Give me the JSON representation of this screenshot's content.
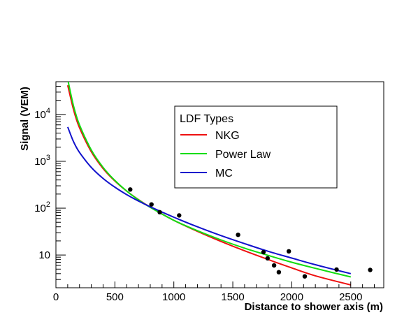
{
  "chart_data": {
    "type": "line",
    "title": "",
    "xlabel": "Distance to shower axis (m)",
    "ylabel": "Signal (VEM)",
    "xlim": [
      0,
      2780
    ],
    "ylim": [
      2,
      50000
    ],
    "y_scale": "log",
    "grid": false,
    "x_ticks": [
      {
        "value": 0,
        "label": "0"
      },
      {
        "value": 500,
        "label": "500"
      },
      {
        "value": 1000,
        "label": "1000"
      },
      {
        "value": 1500,
        "label": "1500"
      },
      {
        "value": 2000,
        "label": "2000"
      },
      {
        "value": 2500,
        "label": "2500"
      }
    ],
    "y_ticks": [
      {
        "value": 10,
        "label": "10",
        "base": "10",
        "exp": ""
      },
      {
        "value": 100,
        "label": "10^2",
        "base": "10",
        "exp": "2"
      },
      {
        "value": 1000,
        "label": "10^3",
        "base": "10",
        "exp": "3"
      },
      {
        "value": 10000,
        "label": "10^4",
        "base": "10",
        "exp": "4"
      }
    ],
    "legend": {
      "title": "LDF Types",
      "position": "top-right",
      "entries": [
        {
          "name": "NKG",
          "color": "#ee1111"
        },
        {
          "name": "Power Law",
          "color": "#11dd11"
        },
        {
          "name": "MC",
          "color": "#1111cc"
        }
      ]
    },
    "series": [
      {
        "name": "NKG",
        "color": "#ee1111",
        "x": [
          100,
          150,
          200,
          300,
          400,
          500,
          600,
          700,
          800,
          1000,
          1200,
          1400,
          1600,
          1800,
          2000,
          2200,
          2500
        ],
        "y": [
          42000,
          12500,
          5200,
          1600,
          700,
          380,
          232,
          152,
          105,
          55,
          32,
          19.5,
          12.3,
          8.0,
          5.3,
          3.6,
          2.3
        ]
      },
      {
        "name": "Power Law",
        "color": "#11dd11",
        "x": [
          100,
          150,
          200,
          300,
          400,
          500,
          600,
          700,
          800,
          1000,
          1200,
          1400,
          1600,
          1800,
          2000,
          2200,
          2500
        ],
        "y": [
          56000,
          15000,
          6000,
          1750,
          740,
          390,
          232,
          150,
          104,
          55,
          33,
          21,
          14,
          9.8,
          7.0,
          5.2,
          3.4
        ]
      },
      {
        "name": "MC",
        "color": "#1111cc",
        "x": [
          100,
          150,
          200,
          300,
          400,
          500,
          600,
          700,
          800,
          1000,
          1200,
          1400,
          1600,
          1800,
          2000,
          2200,
          2500
        ],
        "y": [
          5400,
          2600,
          1550,
          740,
          430,
          280,
          195,
          142,
          107,
          64,
          40,
          26,
          17.5,
          12,
          8.6,
          6.2,
          4.0
        ]
      }
    ],
    "points": {
      "name": "data",
      "color": "#000000",
      "x": [
        630,
        810,
        880,
        1045,
        1545,
        1760,
        1795,
        1850,
        1890,
        1975,
        2110,
        2380,
        2665
      ],
      "y": [
        250,
        120,
        82,
        70,
        27,
        11.5,
        8.5,
        6.0,
        4.3,
        12,
        3.5,
        4.9,
        4.8
      ]
    }
  }
}
